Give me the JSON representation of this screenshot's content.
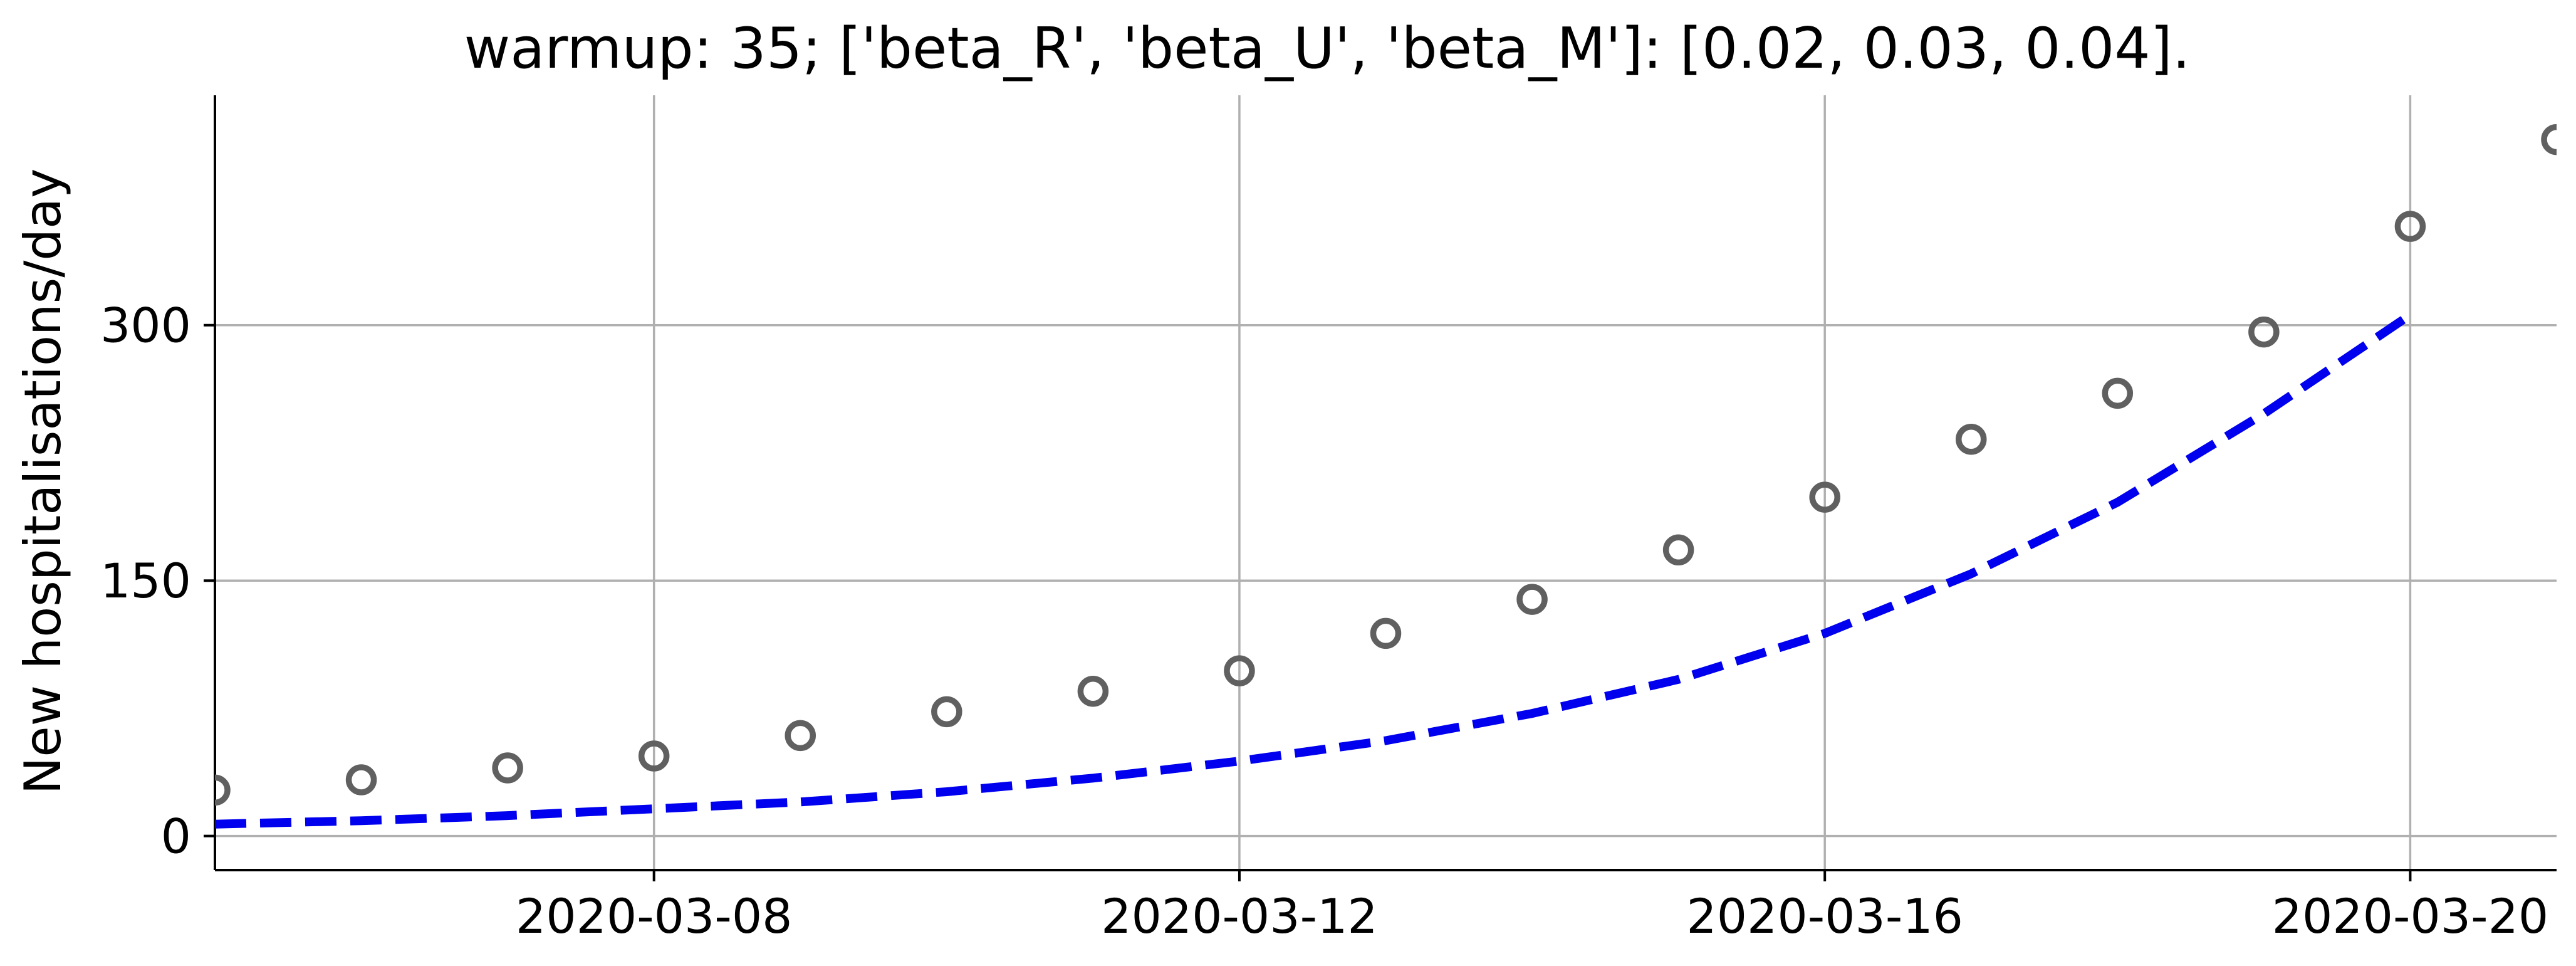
{
  "chart_data": {
    "type": "line",
    "title": "warmup: 35; ['beta_R', 'beta_U', 'beta_M']: [0.02, 0.03, 0.04].",
    "xlabel": "",
    "ylabel": "New hospitalisations/day",
    "xlim": [
      "2020-03-05",
      "2020-03-21"
    ],
    "ylim": [
      -20,
      435
    ],
    "x_ticks": [
      "2020-03-08",
      "2020-03-12",
      "2020-03-16",
      "2020-03-20"
    ],
    "y_ticks": [
      0,
      150,
      300
    ],
    "grid": true,
    "legend": "none",
    "series": [
      {
        "kind": "observed",
        "style": "open-circle markers",
        "color": "#606060",
        "x": [
          "2020-03-05",
          "2020-03-06",
          "2020-03-07",
          "2020-03-08",
          "2020-03-09",
          "2020-03-10",
          "2020-03-11",
          "2020-03-12",
          "2020-03-13",
          "2020-03-14",
          "2020-03-15",
          "2020-03-16",
          "2020-03-17",
          "2020-03-18",
          "2020-03-19",
          "2020-03-20",
          "2020-03-21"
        ],
        "values": [
          27,
          33,
          40,
          47,
          59,
          73,
          85,
          97,
          119,
          139,
          168,
          199,
          233,
          260,
          296,
          358,
          409
        ]
      },
      {
        "kind": "model",
        "style": "dashed line",
        "color": "#0000ee",
        "x": [
          "2020-03-05",
          "2020-03-06",
          "2020-03-07",
          "2020-03-08",
          "2020-03-09",
          "2020-03-10",
          "2020-03-11",
          "2020-03-12",
          "2020-03-13",
          "2020-03-14",
          "2020-03-15",
          "2020-03-16",
          "2020-03-17",
          "2020-03-18",
          "2020-03-19",
          "2020-03-20"
        ],
        "values": [
          7,
          9,
          12,
          16,
          20,
          26,
          34,
          44,
          56,
          72,
          92,
          119,
          154,
          196,
          248,
          306
        ]
      }
    ]
  }
}
